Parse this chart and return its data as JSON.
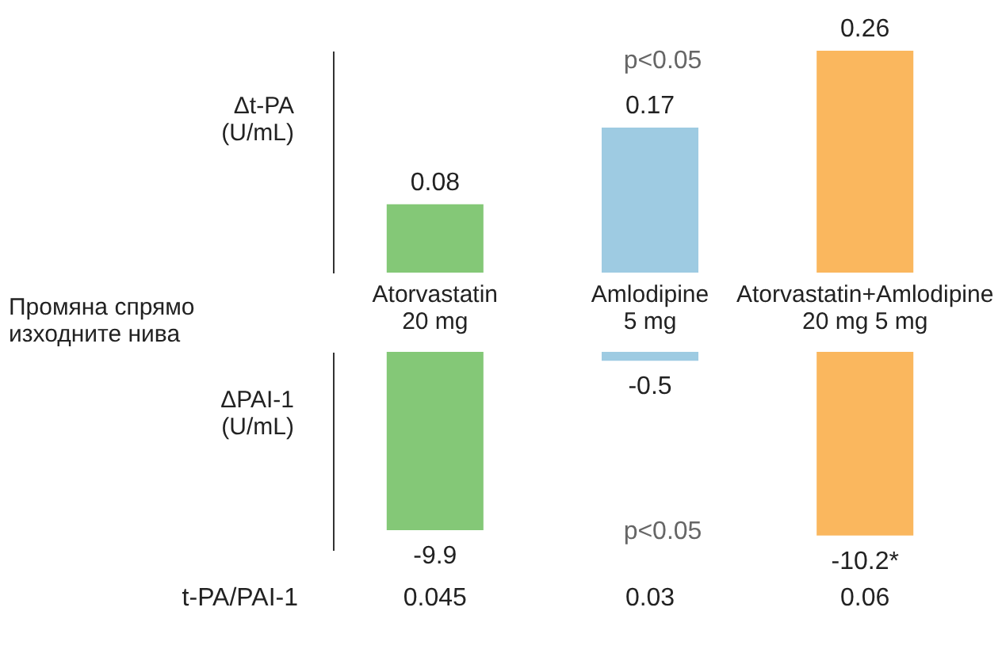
{
  "chart_data": [
    {
      "type": "bar",
      "categories": [
        "Atorvastatin\n20 mg",
        "Amlodipine\n5 mg",
        "Atorvastatin+Amlodipine\n20 mg          5 mg"
      ],
      "values": [
        0.08,
        0.17,
        0.26
      ],
      "colors": [
        "#84c877",
        "#9ecbe2",
        "#fab75e"
      ],
      "ylabel": "Δt-PA\n(U/mL)",
      "xlabel": "Промяна спрямо\nизходните нива",
      "data_labels": true,
      "annotations": [
        "p<0.05"
      ],
      "tick_labels": "x",
      "grid": false
    },
    {
      "type": "bar",
      "categories": [
        null,
        null,
        null
      ],
      "values": [
        -9.9,
        -0.5,
        -10.2
      ],
      "colors": [
        "#84c877",
        "#9ecbe2",
        "#fab75e"
      ],
      "ylabel": "ΔPAI-1\n(U/mL)",
      "value_labels": [
        "-9.9",
        "-0.5",
        "-10.2*"
      ],
      "annotations": [
        "p<0.05",
        "t-PA/PAI-1",
        "0.045",
        "0.03",
        "0.06"
      ],
      "tick_labels": false,
      "grid": false
    }
  ]
}
